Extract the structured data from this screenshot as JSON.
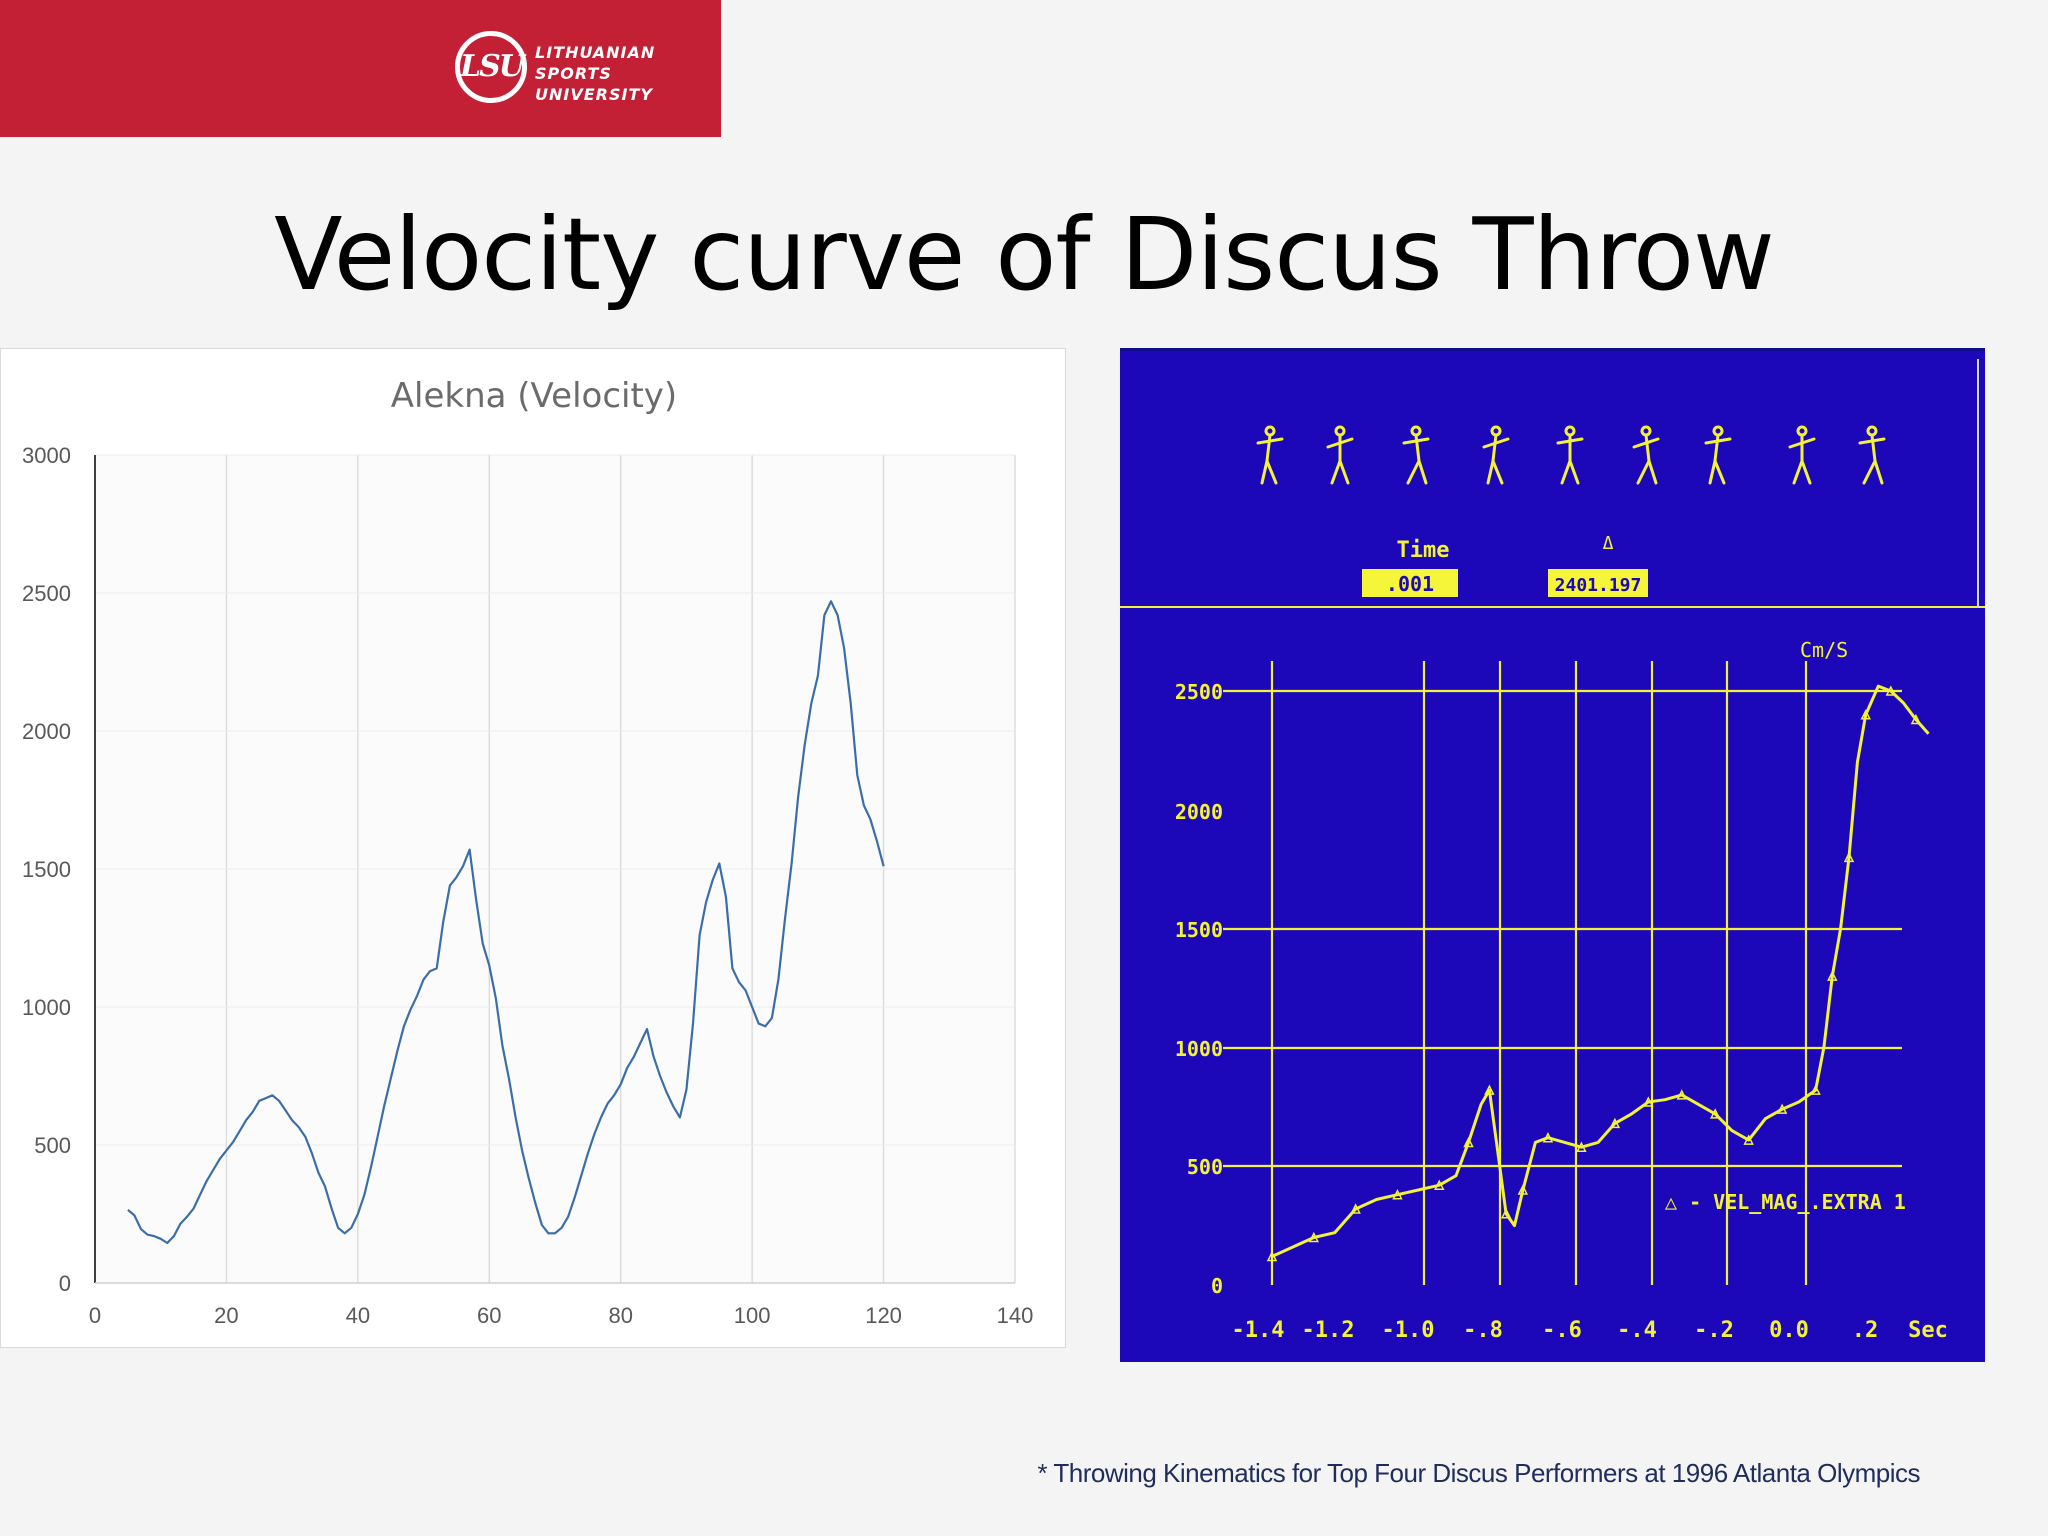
{
  "header": {
    "logo_mark": "LSU",
    "logo_lines": [
      "LITHUANIAN",
      "SPORTS",
      "UNIVERSITY"
    ],
    "colors": {
      "bar": "#c31f35"
    }
  },
  "slide_title": "Velocity curve of Discus Throw",
  "chart_data": [
    {
      "type": "line",
      "title": "Alekna (Velocity)",
      "xlabel": "",
      "ylabel": "",
      "xlim": [
        0,
        140
      ],
      "ylim": [
        0,
        3000
      ],
      "x_ticks": [
        0,
        20,
        40,
        60,
        80,
        100,
        120,
        140
      ],
      "y_ticks": [
        0,
        500,
        1000,
        1500,
        2000,
        2500,
        3000
      ],
      "grid": "vertical and horizontal",
      "line_color": "#3b6ea8",
      "series": [
        {
          "name": "",
          "x": [
            5,
            6,
            7,
            8,
            9,
            10,
            11,
            12,
            13,
            14,
            15,
            16,
            17,
            18,
            19,
            20,
            21,
            22,
            23,
            24,
            25,
            26,
            27,
            28,
            29,
            30,
            31,
            32,
            33,
            34,
            35,
            36,
            37,
            38,
            39,
            40,
            41,
            42,
            43,
            44,
            45,
            46,
            47,
            48,
            49,
            50,
            51,
            52,
            53,
            54,
            55,
            56,
            57,
            58,
            59,
            60,
            61,
            62,
            63,
            64,
            65,
            66,
            67,
            68,
            69,
            70,
            71,
            72,
            73,
            74,
            75,
            76,
            77,
            78,
            79,
            80,
            81,
            82,
            83,
            84,
            85,
            86,
            87,
            88,
            89,
            90,
            91,
            92,
            93,
            94,
            95,
            96,
            97,
            98,
            99,
            100,
            101,
            102,
            103,
            104,
            105,
            106,
            107,
            108,
            109,
            110,
            111,
            112,
            113,
            114,
            115,
            116,
            117,
            118,
            119,
            120
          ],
          "y": [
            265,
            245,
            195,
            175,
            170,
            160,
            145,
            170,
            215,
            240,
            270,
            320,
            370,
            410,
            450,
            480,
            510,
            550,
            590,
            620,
            660,
            670,
            680,
            660,
            625,
            590,
            565,
            530,
            470,
            400,
            350,
            270,
            200,
            180,
            200,
            250,
            320,
            420,
            530,
            640,
            740,
            840,
            930,
            990,
            1040,
            1100,
            1130,
            1140,
            1310,
            1440,
            1470,
            1510,
            1570,
            1390,
            1230,
            1150,
            1030,
            860,
            740,
            600,
            480,
            380,
            290,
            210,
            180,
            180,
            200,
            240,
            310,
            390,
            470,
            540,
            600,
            650,
            680,
            720,
            780,
            820,
            870,
            920,
            820,
            750,
            690,
            640,
            600,
            700,
            940,
            1260,
            1380,
            1460,
            1520,
            1400,
            1140,
            1090,
            1060,
            1000,
            940,
            930,
            960,
            1100,
            1320,
            1520,
            1760,
            1950,
            2100,
            2200,
            2420,
            2470,
            2420,
            2300,
            2100,
            1840,
            1730,
            1680,
            1600,
            1510
          ]
        }
      ]
    },
    {
      "type": "line",
      "title": "",
      "xlabel": "Sec",
      "ylabel": "Cm/S",
      "top_labels": [
        "Time",
        "Δ"
      ],
      "readouts": [
        ".001",
        "2401.197"
      ],
      "legend_text": "△ - VEL_MAG_.EXTRA 1",
      "x_tick_labels": [
        "-1.4",
        "-1.2",
        "-1.0",
        "-.8",
        "-.6",
        "-.4",
        "-.2",
        "0.0",
        ".2"
      ],
      "y_tick_labels": [
        "0",
        "500",
        "1000",
        "1500",
        "2000",
        "2500"
      ],
      "xlim": [
        -1.4,
        0.2
      ],
      "ylim": [
        0,
        2500
      ],
      "figure_count": 9,
      "colors": {
        "background": "#1c08b8",
        "foreground": "#f2f23a",
        "readout_box": "#f5f53a"
      },
      "series": [
        {
          "name": "",
          "x": [
            -1.4,
            -1.35,
            -1.3,
            -1.25,
            -1.2,
            -1.15,
            -1.1,
            -1.05,
            -1.0,
            -0.96,
            -0.93,
            -0.9,
            -0.88,
            -0.86,
            -0.84,
            -0.82,
            -0.8,
            -0.77,
            -0.74,
            -0.7,
            -0.66,
            -0.62,
            -0.58,
            -0.54,
            -0.5,
            -0.46,
            -0.42,
            -0.38,
            -0.34,
            -0.3,
            -0.26,
            -0.22,
            -0.18,
            -0.14,
            -0.1,
            -0.08,
            -0.06,
            -0.04,
            -0.02,
            0.0,
            0.02,
            0.05,
            0.08,
            0.11,
            0.14,
            0.17
          ],
          "y": [
            120,
            160,
            200,
            220,
            320,
            360,
            380,
            400,
            420,
            460,
            600,
            760,
            820,
            560,
            300,
            250,
            400,
            600,
            620,
            600,
            580,
            600,
            680,
            720,
            770,
            780,
            800,
            760,
            720,
            650,
            610,
            700,
            740,
            770,
            820,
            1000,
            1300,
            1500,
            1800,
            2200,
            2400,
            2520,
            2500,
            2450,
            2380,
            2320
          ]
        }
      ]
    }
  ],
  "footnote": "* Throwing Kinematics for Top Four Discus Performers at 1996 Atlanta Olympics"
}
